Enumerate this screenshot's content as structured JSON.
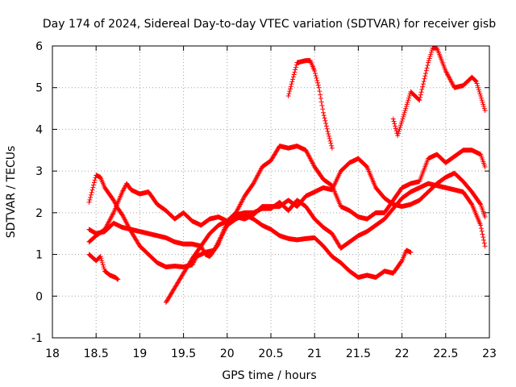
{
  "chart_data": {
    "type": "scatter",
    "title": "Day 174 of 2024, Sidereal Day-to-day VTEC variation (SDTVAR) for receiver gisb",
    "xlabel": "GPS time / hours",
    "ylabel": "SDTVAR / TECUs",
    "xlim": [
      18,
      23
    ],
    "ylim": [
      -1,
      6
    ],
    "x_ticks": [
      "18",
      "18.5",
      "19",
      "19.5",
      "20",
      "20.5",
      "21",
      "21.5",
      "22",
      "22.5",
      "23"
    ],
    "y_ticks": [
      "-1",
      "0",
      "1",
      "2",
      "3",
      "4",
      "5",
      "6"
    ],
    "grid": true,
    "marker": "plus",
    "color": "#ff0000",
    "series": [
      {
        "name": "trace-1",
        "points": [
          [
            18.42,
            1.0
          ],
          [
            18.5,
            0.85
          ],
          [
            18.55,
            0.95
          ],
          [
            18.6,
            0.6
          ],
          [
            18.66,
            0.5
          ],
          [
            18.72,
            0.45
          ],
          [
            18.75,
            0.4
          ]
        ]
      },
      {
        "name": "trace-2",
        "points": [
          [
            18.42,
            2.25
          ],
          [
            18.5,
            2.9
          ],
          [
            18.55,
            2.85
          ],
          [
            18.6,
            2.6
          ],
          [
            18.7,
            2.3
          ],
          [
            18.75,
            2.1
          ],
          [
            18.8,
            1.95
          ],
          [
            18.85,
            1.75
          ],
          [
            18.9,
            1.55
          ],
          [
            19.0,
            1.2
          ],
          [
            19.1,
            1.0
          ],
          [
            19.2,
            0.8
          ],
          [
            19.3,
            0.7
          ],
          [
            19.4,
            0.72
          ],
          [
            19.5,
            0.7
          ],
          [
            19.6,
            0.75
          ],
          [
            19.65,
            0.95
          ],
          [
            19.75,
            1.05
          ],
          [
            19.85,
            1.1
          ],
          [
            19.95,
            1.5
          ],
          [
            20.0,
            1.7
          ],
          [
            20.1,
            1.85
          ],
          [
            20.2,
            1.95
          ],
          [
            20.3,
            1.85
          ],
          [
            20.4,
            1.7
          ],
          [
            20.5,
            1.6
          ],
          [
            20.6,
            1.45
          ],
          [
            20.7,
            1.38
          ],
          [
            20.8,
            1.35
          ],
          [
            20.9,
            1.38
          ],
          [
            21.0,
            1.4
          ],
          [
            21.1,
            1.2
          ],
          [
            21.2,
            0.95
          ],
          [
            21.3,
            0.8
          ],
          [
            21.4,
            0.6
          ],
          [
            21.5,
            0.45
          ],
          [
            21.6,
            0.5
          ],
          [
            21.7,
            0.45
          ],
          [
            21.8,
            0.6
          ],
          [
            21.9,
            0.55
          ],
          [
            22.0,
            0.85
          ],
          [
            22.05,
            1.1
          ],
          [
            22.1,
            1.05
          ]
        ]
      },
      {
        "name": "trace-3",
        "points": [
          [
            18.42,
            1.6
          ],
          [
            18.5,
            1.5
          ],
          [
            18.6,
            1.55
          ],
          [
            18.7,
            1.75
          ],
          [
            18.8,
            1.65
          ],
          [
            18.9,
            1.6
          ],
          [
            19.0,
            1.55
          ],
          [
            19.1,
            1.5
          ],
          [
            19.2,
            1.45
          ],
          [
            19.3,
            1.4
          ],
          [
            19.4,
            1.3
          ],
          [
            19.5,
            1.25
          ],
          [
            19.6,
            1.25
          ],
          [
            19.7,
            1.2
          ],
          [
            19.75,
            1.0
          ],
          [
            19.8,
            0.95
          ],
          [
            19.9,
            1.25
          ],
          [
            20.0,
            1.8
          ],
          [
            20.1,
            1.95
          ],
          [
            20.2,
            2.0
          ],
          [
            20.3,
            2.0
          ],
          [
            20.4,
            2.1
          ],
          [
            20.5,
            2.1
          ],
          [
            20.6,
            2.25
          ],
          [
            20.7,
            2.05
          ],
          [
            20.8,
            2.3
          ],
          [
            20.9,
            2.15
          ],
          [
            21.0,
            1.85
          ],
          [
            21.1,
            1.65
          ],
          [
            21.2,
            1.5
          ],
          [
            21.3,
            1.15
          ],
          [
            21.4,
            1.3
          ],
          [
            21.5,
            1.45
          ],
          [
            21.6,
            1.55
          ],
          [
            21.7,
            1.7
          ],
          [
            21.8,
            1.85
          ],
          [
            21.9,
            2.1
          ],
          [
            22.0,
            2.35
          ],
          [
            22.1,
            2.5
          ],
          [
            22.2,
            2.6
          ],
          [
            22.3,
            2.7
          ],
          [
            22.4,
            2.65
          ],
          [
            22.5,
            2.6
          ],
          [
            22.6,
            2.55
          ],
          [
            22.7,
            2.5
          ],
          [
            22.8,
            2.2
          ],
          [
            22.9,
            1.7
          ],
          [
            22.95,
            1.2
          ]
        ]
      },
      {
        "name": "trace-4",
        "points": [
          [
            18.42,
            1.3
          ],
          [
            18.5,
            1.45
          ],
          [
            18.6,
            1.6
          ],
          [
            18.7,
            2.0
          ],
          [
            18.8,
            2.5
          ],
          [
            18.85,
            2.7
          ],
          [
            18.9,
            2.55
          ],
          [
            19.0,
            2.45
          ],
          [
            19.1,
            2.5
          ],
          [
            19.2,
            2.2
          ],
          [
            19.3,
            2.05
          ],
          [
            19.4,
            1.85
          ],
          [
            19.5,
            2.0
          ],
          [
            19.6,
            1.8
          ],
          [
            19.7,
            1.7
          ],
          [
            19.8,
            1.85
          ],
          [
            19.9,
            1.9
          ],
          [
            20.0,
            1.8
          ],
          [
            20.1,
            2.0
          ],
          [
            20.2,
            2.4
          ],
          [
            20.3,
            2.7
          ],
          [
            20.4,
            3.1
          ],
          [
            20.5,
            3.25
          ],
          [
            20.6,
            3.6
          ],
          [
            20.7,
            3.55
          ],
          [
            20.8,
            3.6
          ],
          [
            20.9,
            3.5
          ],
          [
            21.0,
            3.1
          ],
          [
            21.1,
            2.8
          ],
          [
            21.2,
            2.65
          ],
          [
            21.3,
            2.15
          ],
          [
            21.4,
            2.05
          ],
          [
            21.5,
            1.9
          ],
          [
            21.6,
            1.85
          ],
          [
            21.7,
            2.0
          ],
          [
            21.8,
            2.0
          ],
          [
            21.9,
            2.3
          ],
          [
            22.0,
            2.6
          ],
          [
            22.1,
            2.7
          ],
          [
            22.2,
            2.75
          ],
          [
            22.3,
            3.3
          ],
          [
            22.4,
            3.4
          ],
          [
            22.5,
            3.2
          ],
          [
            22.6,
            3.35
          ],
          [
            22.7,
            3.5
          ],
          [
            22.8,
            3.5
          ],
          [
            22.9,
            3.4
          ],
          [
            22.95,
            3.1
          ]
        ]
      },
      {
        "name": "trace-5",
        "points": [
          [
            19.3,
            -0.15
          ],
          [
            19.4,
            0.2
          ],
          [
            19.5,
            0.55
          ],
          [
            19.6,
            0.9
          ],
          [
            19.7,
            1.2
          ],
          [
            19.8,
            1.5
          ],
          [
            19.9,
            1.7
          ],
          [
            20.0,
            1.8
          ],
          [
            20.1,
            1.9
          ],
          [
            20.2,
            1.85
          ],
          [
            20.3,
            1.95
          ],
          [
            20.4,
            2.15
          ],
          [
            20.5,
            2.15
          ],
          [
            20.6,
            2.15
          ],
          [
            20.7,
            2.3
          ],
          [
            20.8,
            2.15
          ],
          [
            20.9,
            2.4
          ],
          [
            21.0,
            2.5
          ],
          [
            21.1,
            2.6
          ],
          [
            21.2,
            2.55
          ],
          [
            21.3,
            3.0
          ],
          [
            21.4,
            3.2
          ],
          [
            21.5,
            3.3
          ],
          [
            21.6,
            3.1
          ],
          [
            21.7,
            2.6
          ],
          [
            21.8,
            2.35
          ],
          [
            21.9,
            2.2
          ],
          [
            22.0,
            2.15
          ],
          [
            22.1,
            2.2
          ],
          [
            22.2,
            2.3
          ],
          [
            22.3,
            2.5
          ],
          [
            22.4,
            2.7
          ],
          [
            22.5,
            2.85
          ],
          [
            22.6,
            2.95
          ],
          [
            22.7,
            2.75
          ],
          [
            22.8,
            2.5
          ],
          [
            22.9,
            2.2
          ],
          [
            22.95,
            1.9
          ]
        ]
      },
      {
        "name": "trace-6",
        "points": [
          [
            20.7,
            4.8
          ],
          [
            20.75,
            5.2
          ],
          [
            20.8,
            5.6
          ],
          [
            20.9,
            5.65
          ],
          [
            20.95,
            5.65
          ],
          [
            21.0,
            5.4
          ],
          [
            21.05,
            5.0
          ],
          [
            21.1,
            4.4
          ],
          [
            21.15,
            3.95
          ],
          [
            21.2,
            3.55
          ]
        ]
      },
      {
        "name": "trace-7",
        "points": [
          [
            21.9,
            4.25
          ],
          [
            21.95,
            3.85
          ],
          [
            22.0,
            4.2
          ],
          [
            22.1,
            4.9
          ],
          [
            22.2,
            4.7
          ],
          [
            22.25,
            5.15
          ],
          [
            22.3,
            5.6
          ],
          [
            22.35,
            5.95
          ],
          [
            22.4,
            5.95
          ],
          [
            22.5,
            5.4
          ],
          [
            22.6,
            5.0
          ],
          [
            22.7,
            5.05
          ],
          [
            22.8,
            5.25
          ],
          [
            22.85,
            5.15
          ],
          [
            22.9,
            4.8
          ],
          [
            22.95,
            4.45
          ]
        ]
      }
    ]
  }
}
